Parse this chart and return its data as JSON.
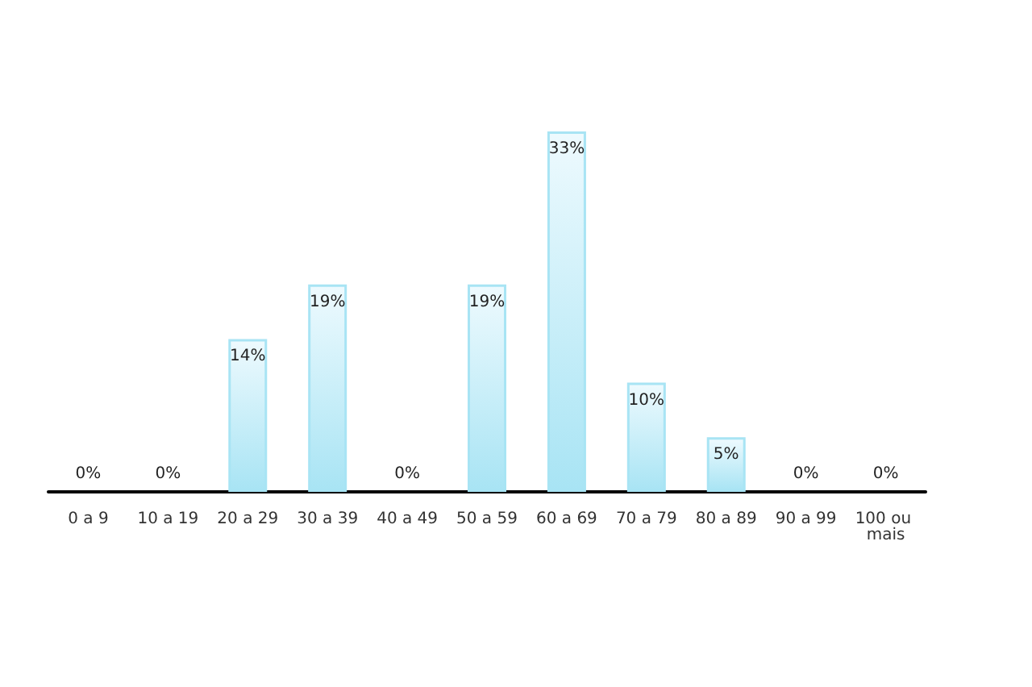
{
  "chart_data": {
    "type": "bar",
    "categories": [
      "0 a 9",
      "10 a 19",
      "20 a 29",
      "30 a 39",
      "40 a 49",
      "50 a 59",
      "60 a 69",
      "70 a 79",
      "80 a 89",
      "90 a 99",
      "100 ou mais"
    ],
    "values": [
      0,
      0,
      14,
      19,
      0,
      19,
      33,
      10,
      5,
      0,
      0
    ],
    "value_labels": [
      "0%",
      "0%",
      "14%",
      "19%",
      "0%",
      "19%",
      "33%",
      "10%",
      "5%",
      "0%",
      "0%"
    ],
    "color": "#a8e4f4",
    "grid": false
  }
}
